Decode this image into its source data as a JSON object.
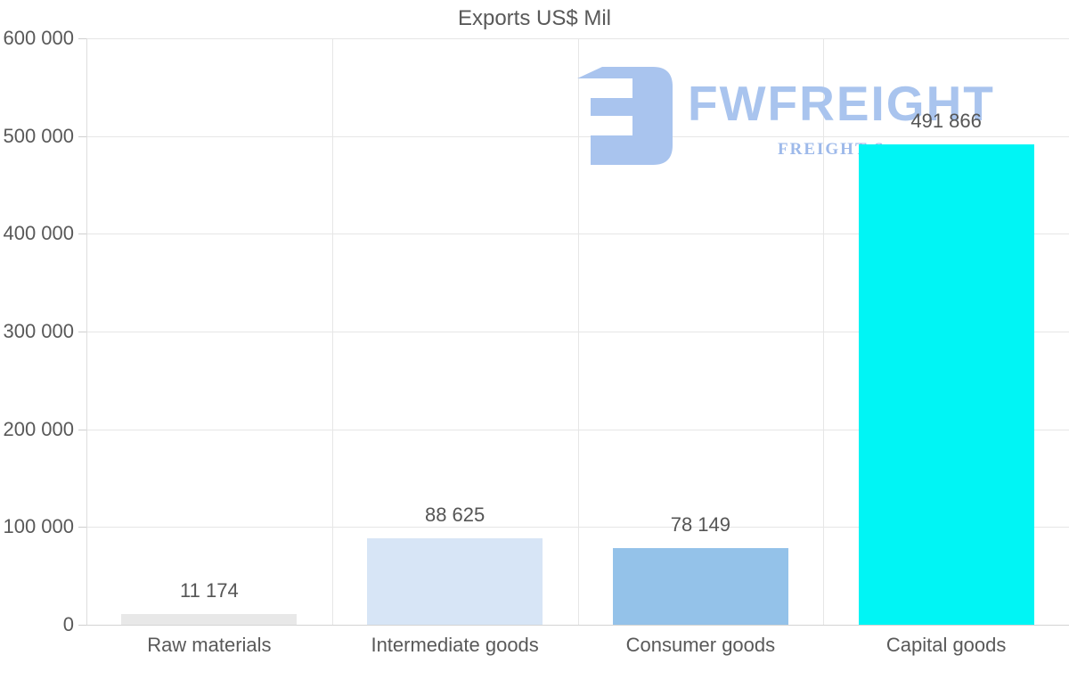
{
  "title": "Exports US$ Mil",
  "watermark": {
    "brand": "FWFREIGHT",
    "tagline": "FREIGHT S",
    "icon_name": "fwfreight-monogram-icon",
    "brand_color": "#a9c4ee",
    "tagline_color": "#9db9ea"
  },
  "chart_data": {
    "type": "bar",
    "title": "Exports US$ Mil",
    "categories": [
      "Raw materials",
      "Intermediate goods",
      "Consumer goods",
      "Capital goods"
    ],
    "values": [
      11174,
      88625,
      78149,
      491866
    ],
    "value_labels": [
      "11 174",
      "88 625",
      "78 149",
      "491 866"
    ],
    "bar_colors": [
      "#e8e8e8",
      "#d7e5f6",
      "#94c2e9",
      "#00f5f5"
    ],
    "xlabel": "",
    "ylabel": "",
    "ylim": [
      0,
      600000
    ],
    "y_ticks": [
      0,
      100000,
      200000,
      300000,
      400000,
      500000,
      600000
    ],
    "y_tick_labels": [
      "0",
      "100 000",
      "200 000",
      "300 000",
      "400 000",
      "500 000",
      "600 000"
    ],
    "grid": true,
    "legend_position": "none",
    "text_color": "#595959",
    "grid_color": "#e6e6e6"
  }
}
